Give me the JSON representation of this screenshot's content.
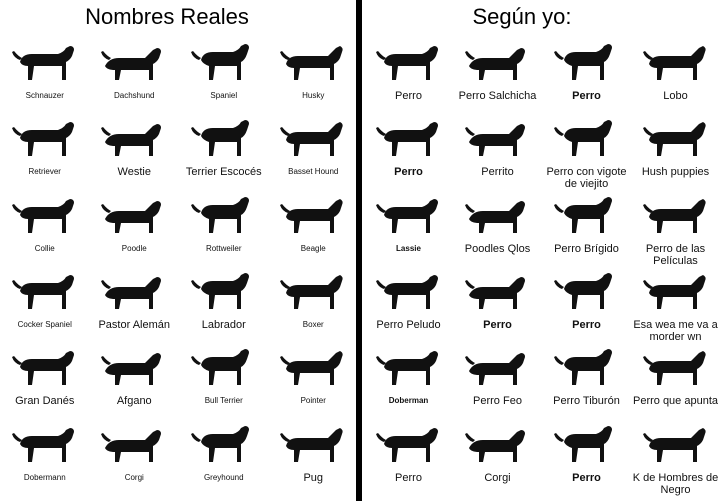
{
  "left": {
    "title": "Nombres Reales",
    "items": [
      {
        "label": "Schnauzer",
        "icon": "schnauzer-icon",
        "sz": "small"
      },
      {
        "label": "Dachshund",
        "icon": "dachshund-icon",
        "sz": "small"
      },
      {
        "label": "Spaniel",
        "icon": "spaniel-icon",
        "sz": "small"
      },
      {
        "label": "Husky",
        "icon": "husky-icon",
        "sz": "small"
      },
      {
        "label": "Retriever",
        "icon": "retriever-icon",
        "sz": "small"
      },
      {
        "label": "Westie",
        "icon": "westie-icon",
        "sz": "big"
      },
      {
        "label": "Terrier Escocés",
        "icon": "scottish-terrier-icon",
        "sz": "big"
      },
      {
        "label": "Basset Hound",
        "icon": "basset-hound-icon",
        "sz": "small"
      },
      {
        "label": "Collie",
        "icon": "collie-icon",
        "sz": "small"
      },
      {
        "label": "Poodle",
        "icon": "poodle-icon",
        "sz": "small"
      },
      {
        "label": "Rottweiler",
        "icon": "rottweiler-icon",
        "sz": "small"
      },
      {
        "label": "Beagle",
        "icon": "beagle-icon",
        "sz": "small"
      },
      {
        "label": "Cocker Spaniel",
        "icon": "cocker-spaniel-icon",
        "sz": "small"
      },
      {
        "label": "Pastor Alemán",
        "icon": "german-shepherd-icon",
        "sz": "big"
      },
      {
        "label": "Labrador",
        "icon": "labrador-icon",
        "sz": "big"
      },
      {
        "label": "Boxer",
        "icon": "boxer-icon",
        "sz": "small"
      },
      {
        "label": "Gran Danés",
        "icon": "great-dane-icon",
        "sz": "big"
      },
      {
        "label": "Afgano",
        "icon": "afghan-hound-icon",
        "sz": "big"
      },
      {
        "label": "Bull Terrier",
        "icon": "bull-terrier-icon",
        "sz": "small"
      },
      {
        "label": "Pointer",
        "icon": "pointer-icon",
        "sz": "small"
      },
      {
        "label": "Dobermann",
        "icon": "dobermann-icon",
        "sz": "small"
      },
      {
        "label": "Corgi",
        "icon": "corgi-icon",
        "sz": "small"
      },
      {
        "label": "Greyhound",
        "icon": "greyhound-icon",
        "sz": "small"
      },
      {
        "label": "Pug",
        "icon": "pug-icon",
        "sz": "big"
      }
    ]
  },
  "right": {
    "title": "Según yo:",
    "items": [
      {
        "label": "Perro",
        "icon": "schnauzer-icon",
        "sz": "big"
      },
      {
        "label": "Perro Salchicha",
        "icon": "dachshund-icon",
        "sz": "big"
      },
      {
        "label": "Perro",
        "icon": "spaniel-icon",
        "sz": "big",
        "bold": true
      },
      {
        "label": "Lobo",
        "icon": "husky-icon",
        "sz": "big"
      },
      {
        "label": "Perro",
        "icon": "retriever-icon",
        "sz": "big",
        "bold": true
      },
      {
        "label": "Perrito",
        "icon": "westie-icon",
        "sz": "big"
      },
      {
        "label": "Perro con vigote de viejito",
        "icon": "scottish-terrier-icon",
        "sz": "big",
        "ml": true
      },
      {
        "label": "Hush puppies",
        "icon": "basset-hound-icon",
        "sz": "big"
      },
      {
        "label": "Lassie",
        "icon": "collie-icon",
        "sz": "small",
        "bold": true
      },
      {
        "label": "Poodles Qlos",
        "icon": "poodle-icon",
        "sz": "big"
      },
      {
        "label": "Perro Brígido",
        "icon": "rottweiler-icon",
        "sz": "big"
      },
      {
        "label": "Perro de las Películas",
        "icon": "beagle-icon",
        "sz": "big",
        "ml": true
      },
      {
        "label": "Perro Peludo",
        "icon": "cocker-spaniel-icon",
        "sz": "big"
      },
      {
        "label": "Perro",
        "icon": "german-shepherd-icon",
        "sz": "big",
        "bold": true
      },
      {
        "label": "Perro",
        "icon": "labrador-icon",
        "sz": "big",
        "bold": true
      },
      {
        "label": "Esa wea me va a morder wn",
        "icon": "boxer-icon",
        "sz": "big",
        "ml": true
      },
      {
        "label": "Doberman",
        "icon": "great-dane-icon",
        "sz": "small",
        "bold": true
      },
      {
        "label": "Perro Feo",
        "icon": "afghan-hound-icon",
        "sz": "big"
      },
      {
        "label": "Perro Tiburón",
        "icon": "bull-terrier-icon",
        "sz": "big"
      },
      {
        "label": "Perro que apunta",
        "icon": "pointer-icon",
        "sz": "big"
      },
      {
        "label": "Perro",
        "icon": "dobermann-icon",
        "sz": "big"
      },
      {
        "label": "Corgi",
        "icon": "corgi-icon",
        "sz": "big"
      },
      {
        "label": "Perro",
        "icon": "greyhound-icon",
        "sz": "big",
        "bold": true
      },
      {
        "label": "K de Hombres de Negro",
        "icon": "pug-icon",
        "sz": "big",
        "ml": true
      }
    ]
  }
}
